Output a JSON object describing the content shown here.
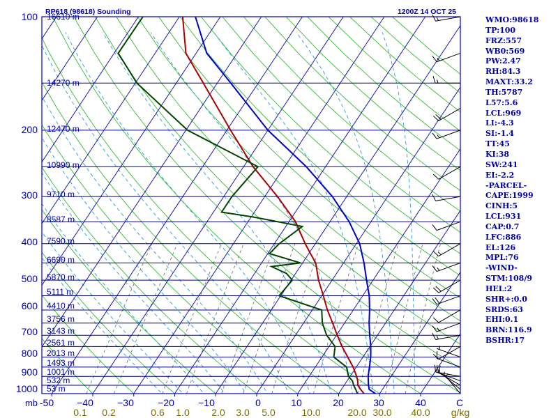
{
  "header": {
    "station": "RP618 (98618) Sounding",
    "time": "1200Z 14 OCT 25"
  },
  "pressure_labels": [
    "100",
    "200",
    "300",
    "400",
    "500",
    "600",
    "700",
    "800",
    "900",
    "1000",
    "mb"
  ],
  "height_labels": [
    "16610 m",
    "14270 m",
    "12470 m",
    "10990 m",
    "9710 m",
    "8587 m",
    "7590 m",
    "6690 m",
    "5870 m",
    "5111 m",
    "4410 m",
    "3756 m",
    "3143 m",
    "2561 m",
    "2013 m",
    "1493 m",
    "1001 m",
    "532 m",
    "53 m"
  ],
  "temp_labels": [
    "-50",
    "−40",
    "−30",
    "−20",
    "−10",
    "0",
    "10",
    "20",
    "30",
    "40",
    "C"
  ],
  "mixing_labels": [
    "0.1",
    "0.2",
    "0.6",
    "1.0",
    "2.0",
    "3.0",
    "5.0",
    "10.0",
    "20.0",
    "30.0",
    "40.0",
    "g/kg"
  ],
  "indices": [
    "WMO:98618",
    "TP:100",
    "FRZ:557",
    "WB0:569",
    "PW:2.47",
    "RH:84.3",
    "MAXT:33.2",
    "TH:5787",
    "L57:5.6",
    "LCL:969",
    "LI:-4.3",
    "SI:-1.4",
    "TT:45",
    "KI:38",
    "SW:241",
    "EI:-2.2",
    "-PARCEL-",
    "CAPE:1999",
    "CINH:5",
    "LCL:931",
    "CAP:0.7",
    "LFC:886",
    "EL:126",
    "MPL:76",
    "-WIND-",
    "STM:108/9",
    "HEL:2",
    "SHR+:0.0",
    "SRDS:63",
    "EHI:0.1",
    "BRN:116.9",
    "BSHR:17"
  ],
  "colors": {
    "axis": "#0000aa",
    "isobar": "#00008b",
    "isotherm": "#1a1aa6",
    "dry_adiabat": "#33bb33",
    "moist_adiabat": "#2a9bd6",
    "mixing_ratio": "#777777",
    "temperature": "#aa0000",
    "dewpoint": "#004400",
    "parcel": "#0000cc",
    "mixing_label": "#7a6a00"
  },
  "chart_data": {
    "type": "skew-t",
    "title": "RP618 (98618) Sounding",
    "time": "1200Z 14 OCT 25",
    "xlabel": "C",
    "ylabel": "mb",
    "pressure_range": [
      100,
      1000
    ],
    "temperature_ticks": [
      -50,
      -40,
      -30,
      -20,
      -10,
      0,
      10,
      20,
      30,
      40
    ],
    "pressure_levels": [
      100,
      150,
      200,
      250,
      300,
      350,
      400,
      450,
      500,
      550,
      600,
      650,
      700,
      750,
      800,
      850,
      900,
      950,
      1000
    ],
    "mixing_ratio_ticks": [
      0.1,
      0.2,
      0.6,
      1.0,
      2.0,
      3.0,
      5.0,
      10.0,
      20.0,
      30.0,
      40.0
    ],
    "temperature_profile": [
      [
        1000,
        26.2
      ],
      [
        975,
        24.7
      ],
      [
        950,
        23.3
      ],
      [
        925,
        22.6
      ],
      [
        900,
        21.6
      ],
      [
        850,
        19.2
      ],
      [
        800,
        16.3
      ],
      [
        750,
        13.2
      ],
      [
        700,
        10.2
      ],
      [
        650,
        7.1
      ],
      [
        600,
        3.7
      ],
      [
        550,
        0.4
      ],
      [
        500,
        -3.3
      ],
      [
        450,
        -6.8
      ],
      [
        425,
        -9.6
      ],
      [
        400,
        -12.5
      ],
      [
        350,
        -18.4
      ],
      [
        300,
        -26.9
      ],
      [
        250,
        -37.7
      ],
      [
        200,
        -49.1
      ],
      [
        150,
        -63.4
      ],
      [
        125,
        -72.5
      ],
      [
        100,
        -79.2
      ]
    ],
    "dewpoint_profile": [
      [
        1000,
        24.6
      ],
      [
        975,
        23.5
      ],
      [
        950,
        22.3
      ],
      [
        925,
        21.3
      ],
      [
        900,
        19.6
      ],
      [
        850,
        17.6
      ],
      [
        800,
        12.9
      ],
      [
        750,
        11.5
      ],
      [
        700,
        7.6
      ],
      [
        650,
        4.6
      ],
      [
        600,
        2.3
      ],
      [
        550,
        -10.4
      ],
      [
        500,
        -9.7
      ],
      [
        480,
        -12.2
      ],
      [
        460,
        -17.0
      ],
      [
        450,
        -10.5
      ],
      [
        425,
        -19.6
      ],
      [
        400,
        -18.8
      ],
      [
        360,
        -16.0
      ],
      [
        340,
        -29.5
      ],
      [
        330,
        -38.0
      ],
      [
        300,
        -38.0
      ],
      [
        250,
        -36.5
      ],
      [
        200,
        -59.6
      ],
      [
        150,
        -79.6
      ],
      [
        125,
        -89.0
      ],
      [
        100,
        -88.9
      ]
    ],
    "parcel_profile": [
      [
        1000,
        29.0
      ],
      [
        975,
        26.8
      ],
      [
        950,
        25.9
      ],
      [
        900,
        24.4
      ],
      [
        850,
        23.2
      ],
      [
        800,
        21.9
      ],
      [
        750,
        20.2
      ],
      [
        700,
        18.1
      ],
      [
        650,
        16.0
      ],
      [
        600,
        14.0
      ],
      [
        550,
        11.6
      ],
      [
        500,
        8.4
      ],
      [
        450,
        5.0
      ],
      [
        400,
        0.8
      ],
      [
        350,
        -5.3
      ],
      [
        300,
        -13.5
      ],
      [
        250,
        -24.7
      ],
      [
        200,
        -40.0
      ],
      [
        150,
        -56.7
      ],
      [
        125,
        -67.4
      ],
      [
        100,
        -76.1
      ]
    ],
    "wind_barbs": [
      [
        100,
        260,
        15
      ],
      [
        125,
        250,
        15
      ],
      [
        150,
        270,
        15
      ],
      [
        175,
        240,
        20
      ],
      [
        200,
        250,
        15
      ],
      [
        250,
        240,
        10
      ],
      [
        300,
        260,
        10
      ],
      [
        350,
        250,
        10
      ],
      [
        400,
        240,
        15
      ],
      [
        450,
        250,
        15
      ],
      [
        500,
        240,
        20
      ],
      [
        550,
        250,
        20
      ],
      [
        600,
        240,
        10
      ],
      [
        650,
        250,
        15
      ],
      [
        700,
        260,
        15
      ],
      [
        750,
        240,
        10
      ],
      [
        800,
        290,
        5
      ],
      [
        850,
        290,
        10
      ],
      [
        900,
        280,
        15
      ],
      [
        925,
        290,
        15
      ],
      [
        950,
        300,
        10
      ],
      [
        975,
        310,
        5
      ],
      [
        1000,
        320,
        5
      ]
    ]
  }
}
